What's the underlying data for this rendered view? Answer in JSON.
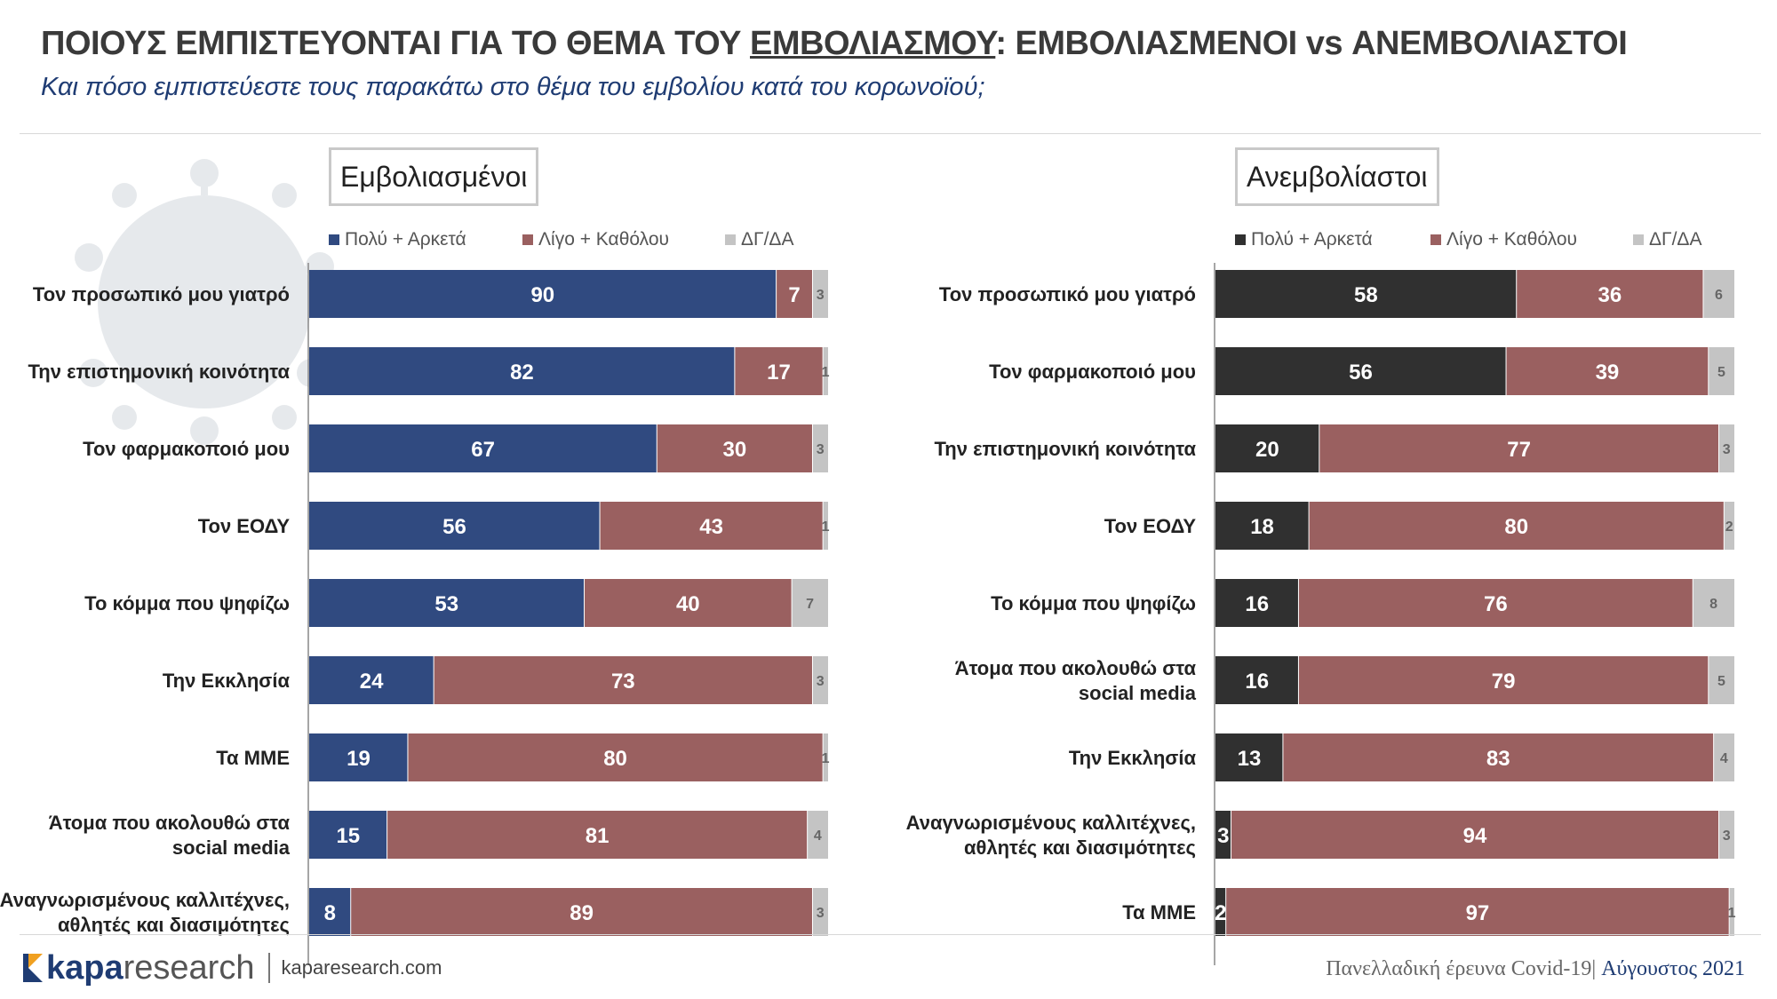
{
  "header": {
    "title_prefix": "ΠΟΙΟΥΣ ΕΜΠΙΣΤΕΥΟΝΤΑΙ ΓΙΑ ΤΟ ΘΕΜΑ ΤΟΥ ",
    "title_underlined": "ΕΜΒΟΛΙΑΣΜΟΥ",
    "title_suffix": ": ΕΜΒΟΛΙΑΣΜΕΝΟΙ vs ΑΝΕΜΒΟΛΙΑΣΤΟΙ",
    "subtitle": "Και πόσο εμπιστεύεστε τους παρακάτω στο θέμα του εμβολίου κατά του κορωνοϊού;"
  },
  "colors": {
    "vaccinated_main": "#304A80",
    "unvaccinated_main": "#303030",
    "little_none": "#9A6060",
    "dk_na": "#C4C4C4",
    "subtitle": "#1f3c73"
  },
  "chart_data": [
    {
      "type": "bar",
      "orientation": "horizontal-stacked",
      "title": "Εμβολιασμένοι",
      "legend": [
        "Πολύ + Αρκετά",
        "Λίγο + Καθόλου",
        "ΔΓ/ΔΑ"
      ],
      "categories": [
        [
          "Τον προσωπικό μου γιατρό"
        ],
        [
          "Την επιστημονική κοινότητα"
        ],
        [
          "Τον φαρμακοποιό μου"
        ],
        [
          "Τον ΕΟΔΥ"
        ],
        [
          "Το κόμμα που ψηφίζω"
        ],
        [
          "Την Εκκλησία"
        ],
        [
          "Τα ΜΜΕ"
        ],
        [
          "Άτομα που ακολουθώ στα",
          "social media"
        ],
        [
          "Αναγνωρισμένους καλλιτέχνες,",
          "αθλητές και διασιμότητες"
        ]
      ],
      "series": [
        {
          "name": "Πολύ + Αρκετά",
          "values": [
            90,
            82,
            67,
            56,
            53,
            24,
            19,
            15,
            8
          ]
        },
        {
          "name": "Λίγο + Καθόλου",
          "values": [
            7,
            17,
            30,
            43,
            40,
            73,
            80,
            81,
            89
          ]
        },
        {
          "name": "ΔΓ/ΔΑ",
          "values": [
            3,
            1,
            3,
            1,
            7,
            3,
            1,
            4,
            3
          ]
        }
      ],
      "xlim": [
        0,
        100
      ]
    },
    {
      "type": "bar",
      "orientation": "horizontal-stacked",
      "title": "Ανεμβολίαστοι",
      "legend": [
        "Πολύ + Αρκετά",
        "Λίγο + Καθόλου",
        "ΔΓ/ΔΑ"
      ],
      "categories": [
        [
          "Τον προσωπικό μου γιατρό"
        ],
        [
          "Τον φαρμακοποιό μου"
        ],
        [
          "Την επιστημονική κοινότητα"
        ],
        [
          "Τον ΕΟΔΥ"
        ],
        [
          "Το κόμμα που ψηφίζω"
        ],
        [
          "Άτομα που ακολουθώ στα",
          "social media"
        ],
        [
          "Την Εκκλησία"
        ],
        [
          "Αναγνωρισμένους καλλιτέχνες,",
          "αθλητές και διασιμότητες"
        ],
        [
          "Τα ΜΜΕ"
        ]
      ],
      "series": [
        {
          "name": "Πολύ + Αρκετά",
          "values": [
            58,
            56,
            20,
            18,
            16,
            16,
            13,
            3,
            2
          ]
        },
        {
          "name": "Λίγο + Καθόλου",
          "values": [
            36,
            39,
            77,
            80,
            76,
            79,
            83,
            94,
            97
          ]
        },
        {
          "name": "ΔΓ/ΔΑ",
          "values": [
            6,
            5,
            3,
            2,
            8,
            5,
            4,
            3,
            1
          ]
        }
      ],
      "xlim": [
        0,
        100
      ]
    }
  ],
  "footer": {
    "brand_bold": "kapa",
    "brand_rest": "research",
    "website": "kaparesearch.com",
    "survey": "Πανελλαδική έρευνα Covid-19",
    "separator": "| ",
    "month": "Αύγουστος 2021"
  }
}
